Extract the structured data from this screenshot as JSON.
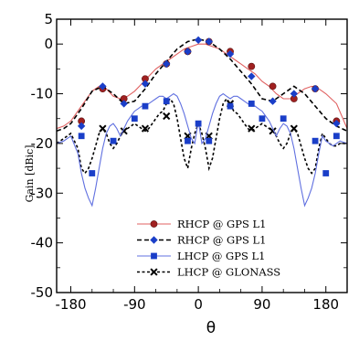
{
  "chart_data": {
    "type": "line",
    "title": "",
    "xlabel": "θ",
    "ylabel": "Gain [dBic]",
    "xlim": [
      -200,
      210
    ],
    "ylim": [
      -50,
      5
    ],
    "xticks": [
      -180,
      -90,
      0,
      90,
      180
    ],
    "xtick_labels": [
      "-180",
      "-90",
      "0",
      "90",
      "180"
    ],
    "yticks": [
      5,
      0,
      -10,
      -20,
      -30,
      -40,
      -50
    ],
    "ytick_labels": [
      "5",
      "0",
      "-10",
      "-20",
      "-30",
      "-40",
      "-50"
    ],
    "grid": false,
    "legend_position": "lower-center",
    "series": [
      {
        "name": "RHCP @ GPS L1",
        "color": "#e06060",
        "marker_color": "#a02020",
        "line_style": "solid",
        "marker": "circle",
        "x": [
          -200,
          -190,
          -180,
          -165,
          -150,
          -140,
          -130,
          -120,
          -110,
          -100,
          -90,
          -80,
          -70,
          -60,
          -50,
          -40,
          -30,
          -20,
          -10,
          0,
          10,
          20,
          30,
          40,
          50,
          60,
          70,
          80,
          90,
          100,
          110,
          120,
          130,
          140,
          150,
          160,
          170,
          180,
          195,
          210
        ],
        "y": [
          -17,
          -16.5,
          -15.5,
          -12.5,
          -9.5,
          -8.5,
          -9,
          -10.5,
          -11,
          -10.5,
          -9.5,
          -8,
          -6.5,
          -5,
          -4,
          -3,
          -2,
          -1,
          -0.5,
          0,
          0,
          -0.5,
          -1,
          -2,
          -3,
          -4,
          -5,
          -6,
          -7.5,
          -8.5,
          -10,
          -11,
          -11,
          -10,
          -9,
          -8.5,
          -9,
          -10,
          -12,
          -17
        ],
        "markers_x": [
          -165,
          -135,
          -105,
          -75,
          -45,
          -15,
          15,
          45,
          75,
          105,
          135,
          165,
          195
        ],
        "markers_y": [
          -15.5,
          -9,
          -11,
          -7,
          -4,
          -1.5,
          0.5,
          -1.5,
          -4.5,
          -8.5,
          -11,
          -9,
          -15.5
        ]
      },
      {
        "name": "RHCP @ GPS L1",
        "color": "#000000",
        "marker_color": "#1a3ec8",
        "line_style": "dashed",
        "marker": "diamond",
        "x": [
          -200,
          -190,
          -180,
          -165,
          -150,
          -135,
          -120,
          -105,
          -90,
          -75,
          -60,
          -45,
          -30,
          -15,
          0,
          15,
          30,
          45,
          60,
          75,
          90,
          105,
          120,
          135,
          150,
          165,
          180,
          195,
          210
        ],
        "y": [
          -17.5,
          -17,
          -16,
          -13,
          -9.5,
          -8.5,
          -10,
          -12,
          -11.5,
          -9,
          -6,
          -3.5,
          -1,
          0.5,
          1,
          0.5,
          -1,
          -3,
          -5.5,
          -8,
          -11,
          -11.5,
          -10,
          -8.5,
          -10,
          -12.5,
          -15,
          -16.5,
          -17.5
        ],
        "markers_x": [
          -165,
          -135,
          -105,
          -75,
          -45,
          -15,
          0,
          15,
          45,
          75,
          105,
          135,
          165,
          195
        ],
        "markers_y": [
          -16.5,
          -8.5,
          -12,
          -8,
          -4,
          -1.5,
          0.8,
          0.5,
          -2,
          -6.5,
          -11.5,
          -10,
          -9,
          -16
        ]
      },
      {
        "name": "LHCP @ GPS L1",
        "color": "#6070e0",
        "marker_color": "#1a3ec8",
        "line_style": "solid",
        "marker": "square",
        "x": [
          -200,
          -190,
          -180,
          -170,
          -165,
          -160,
          -155,
          -150,
          -145,
          -140,
          -135,
          -130,
          -125,
          -120,
          -115,
          -110,
          -105,
          -100,
          -95,
          -90,
          -85,
          -80,
          -75,
          -70,
          -65,
          -60,
          -55,
          -50,
          -45,
          -40,
          -35,
          -30,
          -25,
          -20,
          -15,
          -10,
          -5,
          0,
          5,
          10,
          15,
          20,
          25,
          30,
          35,
          40,
          45,
          50,
          55,
          60,
          65,
          70,
          75,
          80,
          85,
          90,
          95,
          100,
          105,
          110,
          115,
          120,
          125,
          130,
          135,
          140,
          145,
          150,
          155,
          160,
          165,
          170,
          175,
          180,
          185,
          190,
          195,
          200,
          210
        ],
        "y": [
          -20,
          -19.5,
          -18.5,
          -22,
          -26,
          -29,
          -31,
          -32.5,
          -29,
          -25,
          -21,
          -18,
          -16.5,
          -16,
          -17,
          -18.5,
          -17,
          -15.5,
          -14.5,
          -13.5,
          -13,
          -12.5,
          -12.5,
          -12,
          -11.5,
          -11,
          -10.5,
          -10.5,
          -11,
          -10.5,
          -10,
          -10.5,
          -12,
          -14,
          -16.5,
          -19,
          -20,
          -15.5,
          -20,
          -19,
          -16.5,
          -14,
          -12,
          -10.5,
          -10,
          -10.5,
          -11,
          -10.5,
          -10.5,
          -11,
          -11.5,
          -12,
          -12.5,
          -12.5,
          -13,
          -13.5,
          -14.5,
          -15.5,
          -17,
          -18.5,
          -17,
          -16,
          -16.5,
          -18,
          -21,
          -25,
          -29,
          -32.5,
          -31,
          -29,
          -26,
          -22,
          -18.5,
          -19.5,
          -20,
          -20.5,
          -20,
          -19.5,
          -20
        ],
        "markers_x": [
          -165,
          -150,
          -120,
          -90,
          -75,
          -45,
          -15,
          0,
          15,
          45,
          75,
          90,
          120,
          165,
          180,
          195
        ],
        "markers_y": [
          -18.5,
          -26,
          -19.5,
          -15,
          -12.5,
          -11.5,
          -19.5,
          -16,
          -19.5,
          -12.5,
          -12,
          -15,
          -15,
          -19.5,
          -26,
          -18.5
        ]
      },
      {
        "name": "LHCP @ GLONASS",
        "color": "#000000",
        "marker_color": "#000000",
        "line_style": "dashed",
        "marker": "x",
        "x": [
          -200,
          -190,
          -180,
          -170,
          -165,
          -160,
          -155,
          -150,
          -145,
          -140,
          -135,
          -130,
          -125,
          -120,
          -115,
          -110,
          -105,
          -100,
          -95,
          -90,
          -85,
          -80,
          -75,
          -70,
          -65,
          -60,
          -55,
          -50,
          -45,
          -40,
          -35,
          -30,
          -25,
          -20,
          -15,
          -10,
          -5,
          0,
          5,
          10,
          15,
          20,
          25,
          30,
          35,
          40,
          45,
          50,
          55,
          60,
          65,
          70,
          75,
          80,
          85,
          90,
          95,
          100,
          105,
          110,
          115,
          120,
          125,
          130,
          135,
          140,
          145,
          150,
          155,
          160,
          165,
          170,
          175,
          180,
          185,
          190,
          195,
          200,
          210
        ],
        "y": [
          -20,
          -19,
          -18,
          -21,
          -25,
          -26,
          -25,
          -23,
          -20.5,
          -18,
          -17,
          -18,
          -20,
          -21,
          -20,
          -18.5,
          -17.5,
          -17,
          -16.5,
          -16,
          -16.5,
          -17,
          -17.5,
          -17,
          -16,
          -15,
          -14,
          -13.5,
          -12,
          -11,
          -12,
          -15,
          -19,
          -23,
          -25,
          -21,
          -18,
          -16,
          -18,
          -21,
          -25,
          -23,
          -19,
          -15,
          -12,
          -11,
          -12,
          -13.5,
          -14,
          -15,
          -16,
          -17,
          -17.5,
          -17,
          -16.5,
          -16,
          -16.5,
          -17,
          -17.5,
          -18.5,
          -20,
          -21,
          -20,
          -18,
          -17,
          -18,
          -20.5,
          -23,
          -25,
          -26,
          -25,
          -21,
          -18,
          -19,
          -20,
          -20.5,
          -20.5,
          -20,
          -20
        ],
        "markers_x": [
          -135,
          -105,
          -75,
          -45,
          -15,
          15,
          45,
          75,
          105,
          135
        ],
        "markers_y": [
          -17,
          -17.5,
          -17,
          -14.5,
          -18.5,
          -18.5,
          -12,
          -17,
          -17.5,
          -17
        ]
      }
    ]
  }
}
